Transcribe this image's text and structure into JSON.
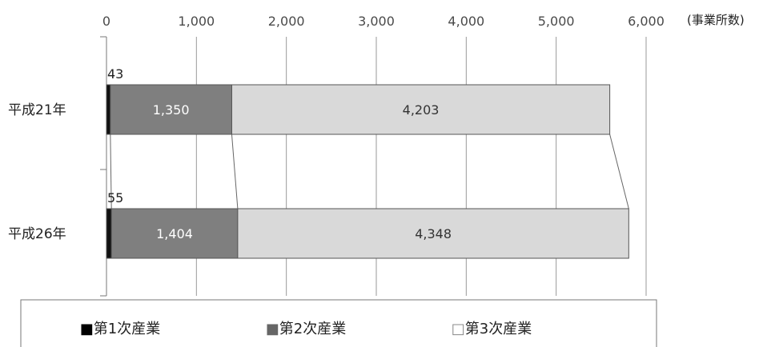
{
  "chart_data": {
    "type": "bar",
    "orientation": "horizontal",
    "stacked": true,
    "unit_label": "(事業所数)",
    "categories": [
      "平成21年",
      "平成26年"
    ],
    "series": [
      {
        "name": "第1次産業",
        "values": [
          43,
          55
        ],
        "color": "#111111",
        "label_color": "#222222",
        "label_position": "above"
      },
      {
        "name": "第2次産業",
        "values": [
          1350,
          1404
        ],
        "color": "#7f7f7f",
        "label_color": "#ffffff",
        "label_position": "inside"
      },
      {
        "name": "第3次産業",
        "values": [
          4203,
          4348
        ],
        "color": "#d9d9d9",
        "label_color": "#333333",
        "label_position": "inside"
      }
    ],
    "data_labels": [
      [
        "43",
        "1,350",
        "4,203"
      ],
      [
        "55",
        "1,404",
        "4,348"
      ]
    ],
    "xlim": [
      0,
      6000
    ],
    "x_ticks": [
      0,
      1000,
      2000,
      3000,
      4000,
      5000,
      6000
    ],
    "x_tick_labels": [
      "0",
      "1,000",
      "2,000",
      "3,000",
      "4,000",
      "5,000",
      "6,000"
    ],
    "grid": true,
    "axis_position": "top",
    "series_connector_lines": true,
    "legend_position": "bottom",
    "legend_markers": [
      "■",
      "■",
      "□"
    ]
  }
}
